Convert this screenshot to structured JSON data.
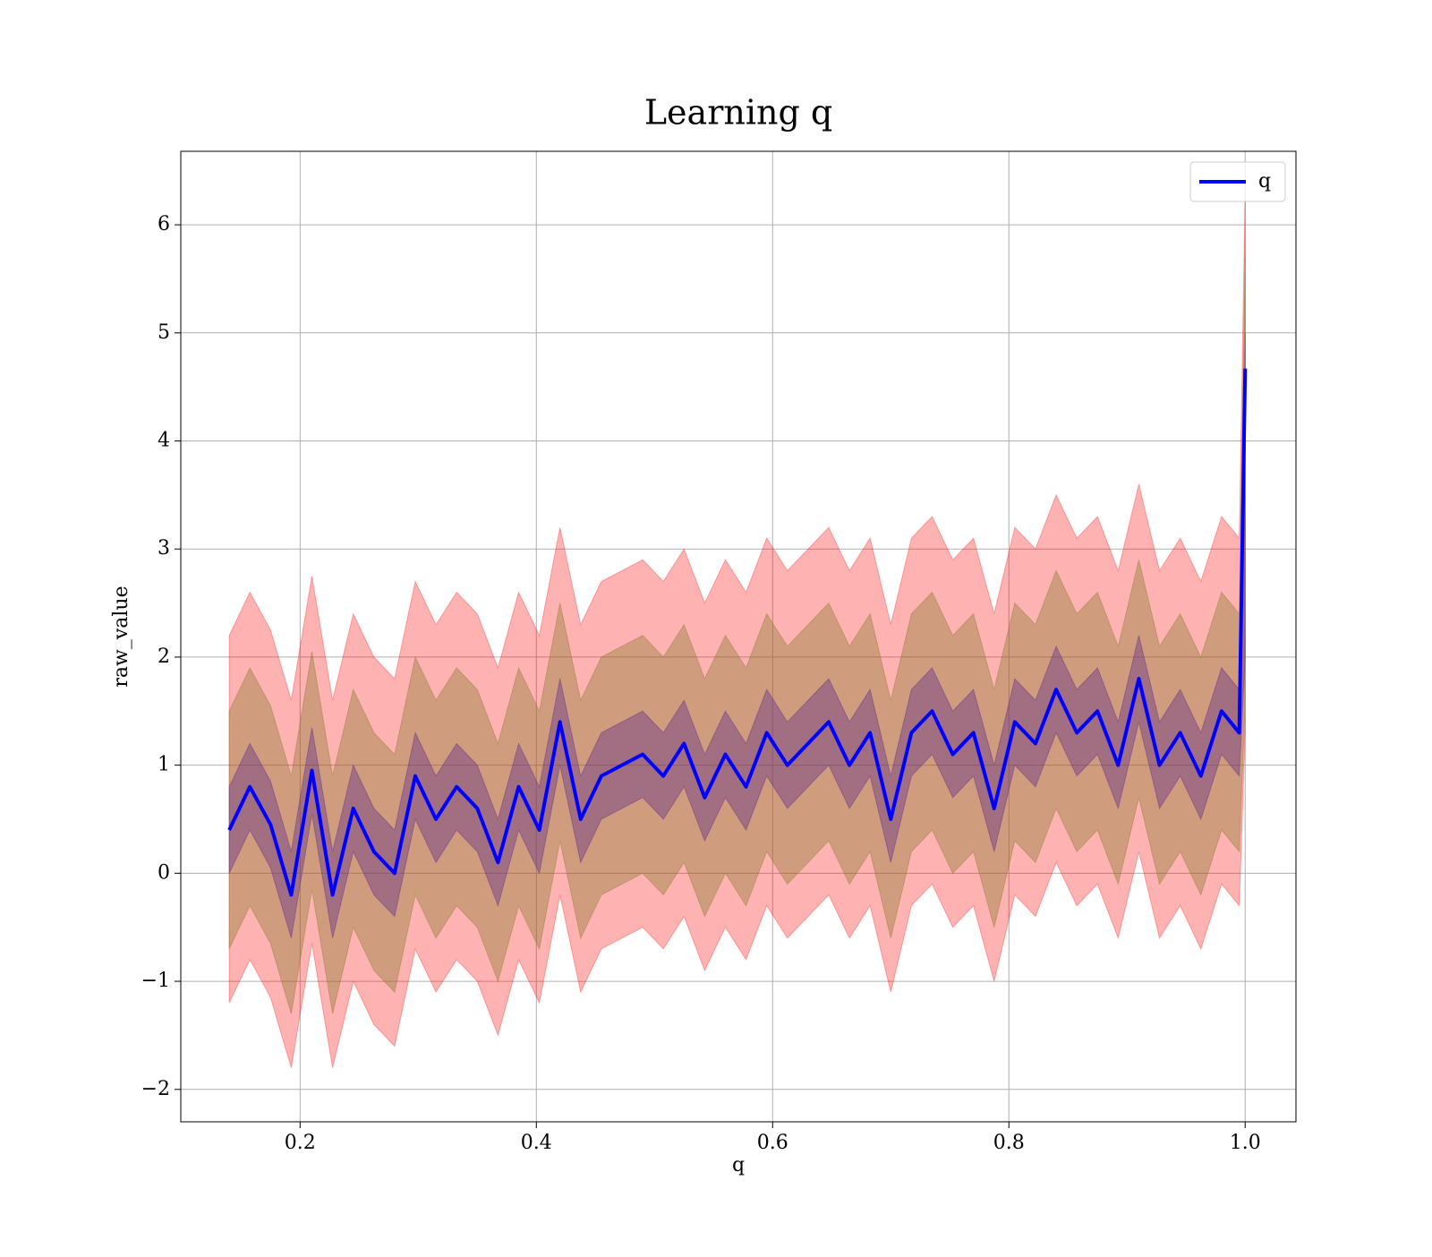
{
  "chart_data": {
    "type": "line",
    "title": "Learning q",
    "xlabel": "q",
    "ylabel": "raw_value",
    "x": [
      0.14,
      0.1575,
      0.175,
      0.1925,
      0.21,
      0.2275,
      0.245,
      0.2625,
      0.28,
      0.2975,
      0.315,
      0.3325,
      0.35,
      0.3675,
      0.385,
      0.4025,
      0.42,
      0.4375,
      0.455,
      0.4725,
      0.49,
      0.5075,
      0.525,
      0.5425,
      0.56,
      0.5775,
      0.595,
      0.6125,
      0.63,
      0.6475,
      0.665,
      0.6825,
      0.7,
      0.7175,
      0.735,
      0.7525,
      0.77,
      0.7875,
      0.805,
      0.8225,
      0.84,
      0.8575,
      0.875,
      0.8925,
      0.91,
      0.9275,
      0.945,
      0.9625,
      0.98,
      0.995,
      1.0
    ],
    "series": [
      {
        "name": "q",
        "color": "#0000ff",
        "values": [
          0.4,
          0.8,
          0.45,
          -0.2,
          0.95,
          -0.2,
          0.6,
          0.2,
          0.0,
          0.9,
          0.5,
          0.8,
          0.6,
          0.1,
          0.8,
          0.4,
          1.4,
          0.5,
          0.9,
          1.0,
          1.1,
          0.9,
          1.2,
          0.7,
          1.1,
          0.8,
          1.3,
          1.0,
          1.2,
          1.4,
          1.0,
          1.3,
          0.5,
          1.3,
          1.5,
          1.1,
          1.3,
          0.6,
          1.4,
          1.2,
          1.7,
          1.3,
          1.5,
          1.0,
          1.8,
          1.0,
          1.3,
          0.9,
          1.5,
          1.3,
          4.67
        ]
      }
    ],
    "bands": [
      {
        "color": "#ff0000",
        "alpha": 0.3,
        "upper": [
          2.2,
          2.6,
          2.25,
          1.6,
          2.75,
          1.6,
          2.4,
          2.0,
          1.8,
          2.7,
          2.3,
          2.6,
          2.4,
          1.9,
          2.6,
          2.2,
          3.2,
          2.3,
          2.7,
          2.8,
          2.9,
          2.7,
          3.0,
          2.5,
          2.9,
          2.6,
          3.1,
          2.8,
          3.0,
          3.2,
          2.8,
          3.1,
          2.3,
          3.1,
          3.3,
          2.9,
          3.1,
          2.4,
          3.2,
          3.0,
          3.5,
          3.1,
          3.3,
          2.8,
          3.6,
          2.8,
          3.1,
          2.7,
          3.3,
          3.1,
          6.3
        ],
        "lower": [
          -1.2,
          -0.8,
          -1.15,
          -1.8,
          -0.65,
          -1.8,
          -1.0,
          -1.4,
          -1.6,
          -0.7,
          -1.1,
          -0.8,
          -1.0,
          -1.5,
          -0.8,
          -1.2,
          -0.2,
          -1.1,
          -0.7,
          -0.6,
          -0.5,
          -0.7,
          -0.4,
          -0.9,
          -0.5,
          -0.8,
          -0.3,
          -0.6,
          -0.4,
          -0.2,
          -0.6,
          -0.3,
          -1.1,
          -0.3,
          -0.1,
          -0.5,
          -0.3,
          -1.0,
          -0.2,
          -0.4,
          0.1,
          -0.3,
          -0.1,
          -0.6,
          0.2,
          -0.6,
          -0.3,
          -0.7,
          -0.1,
          -0.3,
          1.3
        ]
      },
      {
        "color": "#8a7a30",
        "alpha": 0.4,
        "upper": [
          1.5,
          1.9,
          1.55,
          0.9,
          2.05,
          0.9,
          1.7,
          1.3,
          1.1,
          2.0,
          1.6,
          1.9,
          1.7,
          1.2,
          1.9,
          1.5,
          2.5,
          1.6,
          2.0,
          2.1,
          2.2,
          2.0,
          2.3,
          1.8,
          2.2,
          1.9,
          2.4,
          2.1,
          2.3,
          2.5,
          2.1,
          2.4,
          1.6,
          2.4,
          2.6,
          2.2,
          2.4,
          1.7,
          2.5,
          2.3,
          2.8,
          2.4,
          2.6,
          2.1,
          2.9,
          2.1,
          2.4,
          2.0,
          2.6,
          2.4,
          5.7
        ],
        "lower": [
          -0.7,
          -0.3,
          -0.65,
          -1.3,
          -0.15,
          -1.3,
          -0.5,
          -0.9,
          -1.1,
          -0.2,
          -0.6,
          -0.3,
          -0.5,
          -1.0,
          -0.3,
          -0.7,
          0.3,
          -0.6,
          -0.2,
          -0.1,
          0.0,
          -0.2,
          0.1,
          -0.4,
          0.0,
          -0.3,
          0.2,
          -0.1,
          0.1,
          0.3,
          -0.1,
          0.2,
          -0.6,
          0.2,
          0.4,
          0.0,
          0.2,
          -0.5,
          0.3,
          0.1,
          0.6,
          0.2,
          0.4,
          -0.1,
          0.7,
          -0.1,
          0.2,
          -0.2,
          0.4,
          0.2,
          1.6
        ]
      },
      {
        "color": "#5a2a8a",
        "alpha": 0.4,
        "upper": [
          0.8,
          1.2,
          0.85,
          0.2,
          1.35,
          0.2,
          1.0,
          0.6,
          0.4,
          1.3,
          0.9,
          1.2,
          1.0,
          0.5,
          1.2,
          0.8,
          1.8,
          0.9,
          1.3,
          1.4,
          1.5,
          1.3,
          1.6,
          1.1,
          1.5,
          1.2,
          1.7,
          1.4,
          1.6,
          1.8,
          1.4,
          1.7,
          0.9,
          1.7,
          1.9,
          1.5,
          1.7,
          1.0,
          1.8,
          1.6,
          2.1,
          1.7,
          1.9,
          1.4,
          2.2,
          1.4,
          1.7,
          1.3,
          1.9,
          1.7,
          5.0
        ],
        "lower": [
          0.0,
          0.4,
          0.05,
          -0.6,
          0.55,
          -0.6,
          0.2,
          -0.2,
          -0.4,
          0.5,
          0.1,
          0.4,
          0.2,
          -0.3,
          0.4,
          0.0,
          1.0,
          0.1,
          0.5,
          0.6,
          0.7,
          0.5,
          0.8,
          0.3,
          0.7,
          0.4,
          0.9,
          0.6,
          0.8,
          1.0,
          0.6,
          0.9,
          0.1,
          0.9,
          1.1,
          0.7,
          0.9,
          0.2,
          1.0,
          0.8,
          1.3,
          0.9,
          1.1,
          0.6,
          1.4,
          0.6,
          0.9,
          0.5,
          1.1,
          0.9,
          2.0
        ]
      }
    ],
    "xlim": [
      0.099,
      1.043
    ],
    "ylim": [
      -2.3,
      6.68
    ],
    "xticks": [
      0.2,
      0.4,
      0.6,
      0.8,
      {
        "value": 1,
        "label": "1.0"
      }
    ],
    "yticks": [
      {
        "value": -2,
        "label": "−2"
      },
      {
        "value": -1,
        "label": "−1"
      },
      0,
      1,
      2,
      3,
      4,
      5,
      6
    ],
    "grid": true,
    "legend": "upper right"
  }
}
